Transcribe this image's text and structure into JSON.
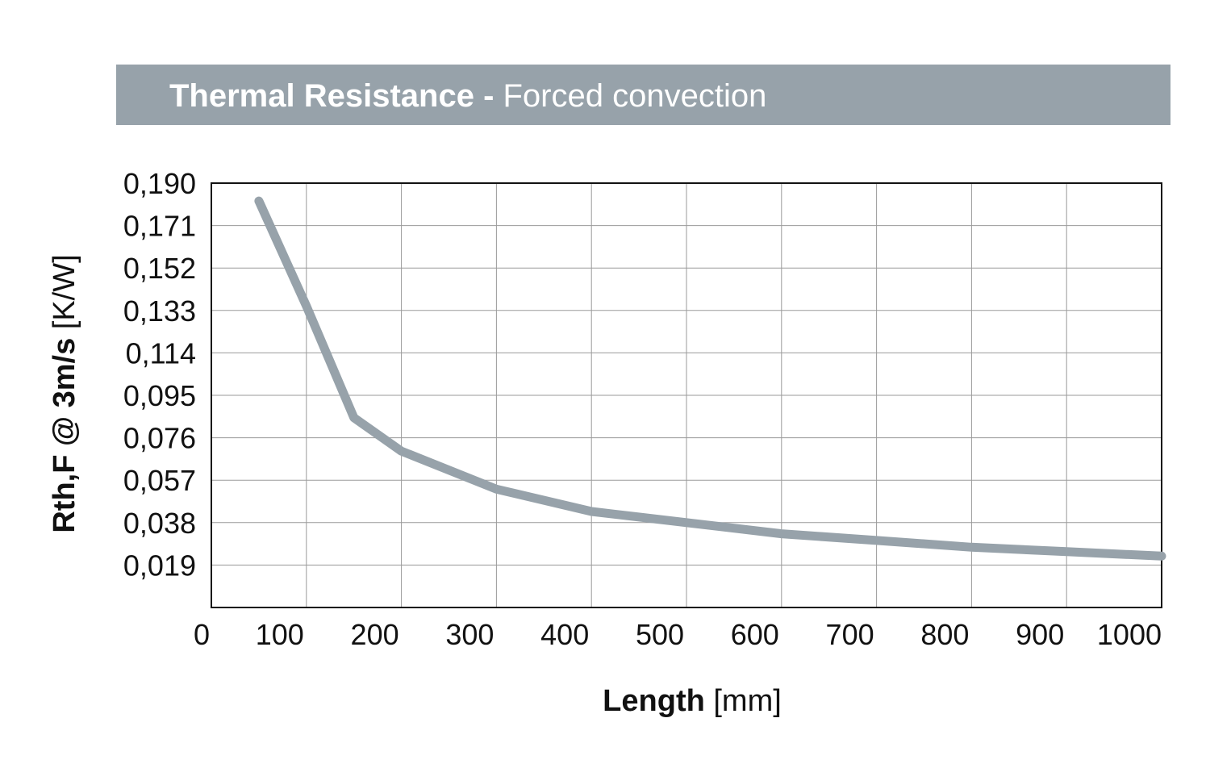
{
  "title": {
    "main": "Thermal Resistance",
    "separator": " - ",
    "sub": "Forced convection"
  },
  "chart_data": {
    "type": "line",
    "title": "Thermal Resistance - Forced convection",
    "xlabel": {
      "bold": "Length",
      "unit": "[mm]"
    },
    "ylabel": {
      "bold": "Rth,F @ 3m/s",
      "unit": "[K/W]"
    },
    "xlim": [
      0,
      1000
    ],
    "ylim": [
      0,
      0.19
    ],
    "x_ticks": [
      "0",
      "100",
      "200",
      "300",
      "400",
      "500",
      "600",
      "700",
      "800",
      "900",
      "1000"
    ],
    "y_ticks": [
      "0,190",
      "0,171",
      "0,152",
      "0,133",
      "0,114",
      "0,095",
      "0,076",
      "0,057",
      "0,038",
      "0,019"
    ],
    "y_tick_values": [
      0.19,
      0.171,
      0.152,
      0.133,
      0.114,
      0.095,
      0.076,
      0.057,
      0.038,
      0.019
    ],
    "grid": true,
    "series": [
      {
        "color": "#97a2aa",
        "x": [
          50,
          100,
          150,
          200,
          300,
          400,
          500,
          600,
          700,
          800,
          900,
          1000
        ],
        "y": [
          0.182,
          0.135,
          0.085,
          0.07,
          0.053,
          0.043,
          0.038,
          0.033,
          0.03,
          0.027,
          0.025,
          0.023
        ]
      }
    ]
  }
}
